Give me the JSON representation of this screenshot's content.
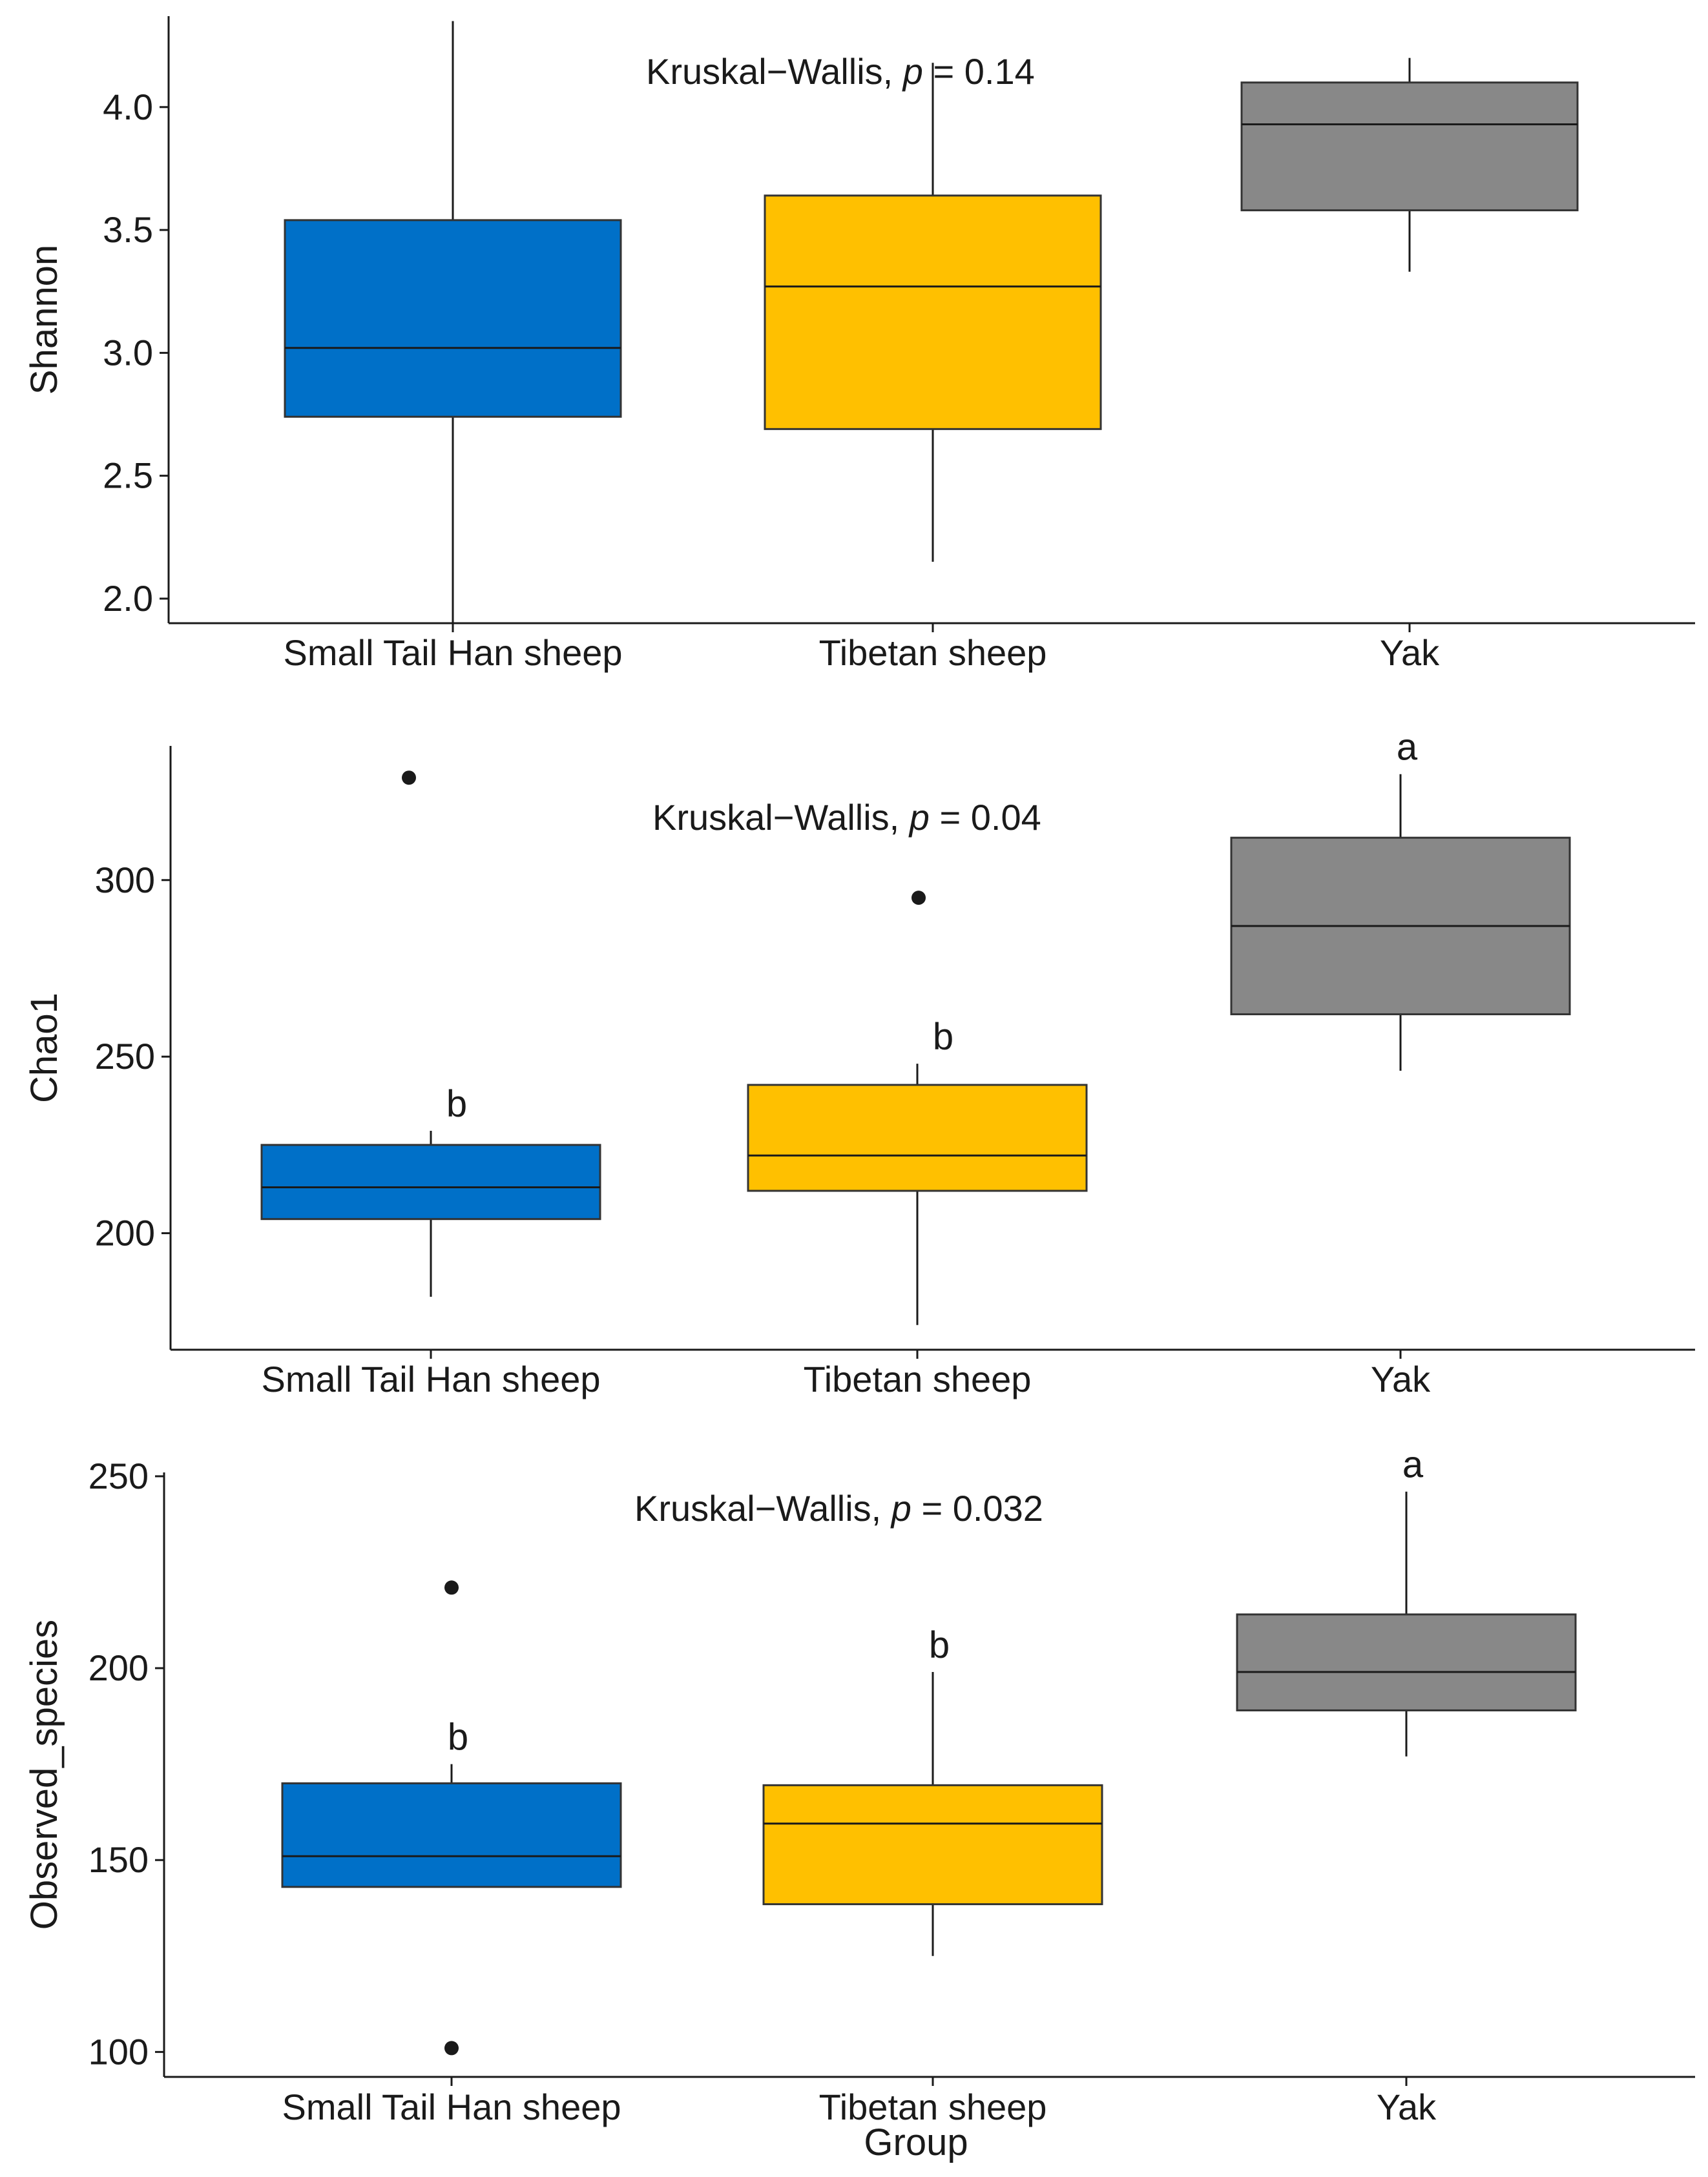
{
  "figure": {
    "x_axis_title": "Group"
  },
  "colors": {
    "Small Tail Han sheep": "#0070C8",
    "Tibetan sheep": "#FFC000",
    "Yak": "#888888",
    "stroke": "#1a1a1a"
  },
  "chart_data": [
    {
      "type": "box",
      "ylabel": "Shannon",
      "xlabel": "",
      "categories": [
        "Small Tail Han sheep",
        "Tibetan sheep",
        "Yak"
      ],
      "ylim": [
        1.9,
        4.37
      ],
      "yticks": [
        2.0,
        2.5,
        3.0,
        3.5,
        4.0
      ],
      "ytick_labels": [
        "2.0",
        "2.5",
        "3.0",
        "3.5",
        "4.0"
      ],
      "test": {
        "name": "Kruskal−Wallis,",
        "p_label": "p",
        "p_value": "= 0.14"
      },
      "boxes": [
        {
          "group": "Small Tail Han sheep",
          "min": 1.9,
          "q1": 2.74,
          "median": 3.02,
          "q3": 3.54,
          "max": 4.35,
          "outliers": [],
          "letter": ""
        },
        {
          "group": "Tibetan sheep",
          "min": 2.15,
          "q1": 2.69,
          "median": 3.27,
          "q3": 3.64,
          "max": 4.18,
          "outliers": [],
          "letter": ""
        },
        {
          "group": "Yak",
          "min": 3.33,
          "q1": 3.58,
          "median": 3.93,
          "q3": 4.1,
          "max": 4.2,
          "outliers": [],
          "letter": ""
        }
      ]
    },
    {
      "type": "box",
      "ylabel": "Chao1",
      "xlabel": "",
      "categories": [
        "Small Tail Han sheep",
        "Tibetan sheep",
        "Yak"
      ],
      "ylim": [
        167,
        338
      ],
      "yticks": [
        200,
        250,
        300
      ],
      "ytick_labels": [
        "200",
        "250",
        "300"
      ],
      "test": {
        "name": "Kruskal−Wallis,",
        "p_label": "p",
        "p_value": "= 0.04"
      },
      "boxes": [
        {
          "group": "Small Tail Han sheep",
          "min": 182,
          "q1": 204,
          "median": 213,
          "q3": 225,
          "max": 229,
          "outliers": [
            329
          ],
          "letter": "b"
        },
        {
          "group": "Tibetan sheep",
          "min": 174,
          "q1": 212,
          "median": 222,
          "q3": 242,
          "max": 248,
          "outliers": [
            295
          ],
          "letter": "b"
        },
        {
          "group": "Yak",
          "min": 246,
          "q1": 262,
          "median": 287,
          "q3": 312,
          "max": 330,
          "outliers": [],
          "letter": "a"
        }
      ]
    },
    {
      "type": "box",
      "ylabel": "Observed_species",
      "xlabel": "Group",
      "categories": [
        "Small Tail Han sheep",
        "Tibetan sheep",
        "Yak"
      ],
      "ylim": [
        93.5,
        251
      ],
      "yticks": [
        100,
        150,
        200,
        250
      ],
      "ytick_labels": [
        "100",
        "150",
        "200",
        "250"
      ],
      "test": {
        "name": "Kruskal−Wallis,",
        "p_label": "p",
        "p_value": "= 0.032"
      },
      "boxes": [
        {
          "group": "Small Tail Han sheep",
          "min": 143,
          "q1": 143,
          "median": 151,
          "q3": 170,
          "max": 175,
          "outliers": [
            221,
            101
          ],
          "letter": "b"
        },
        {
          "group": "Tibetan sheep",
          "min": 125,
          "q1": 138.5,
          "median": 159.5,
          "q3": 169.5,
          "max": 199,
          "outliers": [],
          "letter": "b"
        },
        {
          "group": "Yak",
          "min": 177,
          "q1": 189,
          "median": 199,
          "q3": 214,
          "max": 246,
          "outliers": [],
          "letter": "a"
        }
      ]
    }
  ]
}
